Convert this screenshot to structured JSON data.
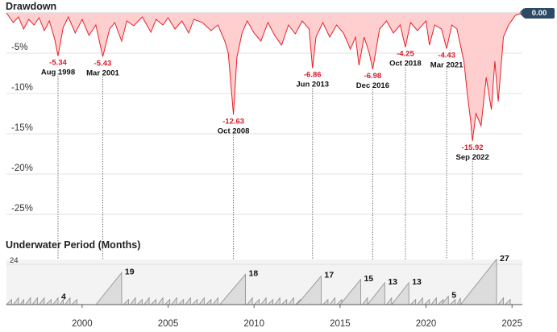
{
  "drawdown_title": "Drawdown",
  "underwater_title": "Underwater Period (Months)",
  "current_value": "0.00",
  "colors": {
    "dd_line": "#e8202a",
    "dd_fill": "#ffcfcf",
    "uw_fill": "#dcdcdc",
    "uw_line": "#8a8a8a",
    "badge": "#2c4a66"
  },
  "chart_data": [
    {
      "type": "area",
      "title": "Drawdown",
      "ylabel": "Drawdown (%)",
      "ylim": [
        -27,
        0
      ],
      "yticks": [
        -5,
        -10,
        -15,
        -20,
        -25
      ],
      "ytick_labels": [
        "-5%",
        "-10%",
        "-15%",
        "-20%",
        "-25%"
      ],
      "xlim": [
        1995.6,
        2025.6
      ],
      "xticks": [
        2000,
        2005,
        2010,
        2015,
        2020,
        2025
      ],
      "xtick_labels": [
        "2000",
        "2005",
        "2010",
        "2015",
        "2020",
        "2025"
      ],
      "current": 0.0,
      "annotations": [
        {
          "x": 1998.6,
          "value": -5.34,
          "label": "-5.34",
          "date": "Aug 1998"
        },
        {
          "x": 2001.2,
          "value": -5.43,
          "label": "-5.43",
          "date": "Mar 2001"
        },
        {
          "x": 2008.8,
          "value": -12.63,
          "label": "-12.63",
          "date": "Oct 2008"
        },
        {
          "x": 2013.4,
          "value": -6.86,
          "label": "-6.86",
          "date": "Jun 2013"
        },
        {
          "x": 2016.9,
          "value": -6.98,
          "label": "-6.98",
          "date": "Dec 2016"
        },
        {
          "x": 2018.8,
          "value": -4.25,
          "label": "-4.25",
          "date": "Oct 2018"
        },
        {
          "x": 2021.2,
          "value": -4.43,
          "label": "-4.43",
          "date": "Mar 2021"
        },
        {
          "x": 2022.7,
          "value": -15.92,
          "label": "-15.92",
          "date": "Sep 2022"
        }
      ],
      "series": [
        {
          "name": "Drawdown",
          "x": [
            1995.6,
            1996.0,
            1996.3,
            1996.6,
            1996.9,
            1997.2,
            1997.5,
            1997.8,
            1998.1,
            1998.4,
            1998.6,
            1998.9,
            1999.2,
            1999.6,
            2000.0,
            2000.4,
            2000.8,
            2001.2,
            2001.6,
            2001.9,
            2002.3,
            2002.6,
            2003.0,
            2003.5,
            2004.0,
            2004.3,
            2004.7,
            2005.0,
            2005.4,
            2005.8,
            2006.2,
            2006.5,
            2007.0,
            2007.5,
            2007.9,
            2008.3,
            2008.5,
            2008.8,
            2009.0,
            2009.3,
            2009.6,
            2010.0,
            2010.4,
            2010.8,
            2011.2,
            2011.6,
            2012.0,
            2012.4,
            2012.8,
            2013.2,
            2013.4,
            2013.6,
            2014.0,
            2014.4,
            2014.8,
            2015.2,
            2015.6,
            2015.9,
            2016.1,
            2016.4,
            2016.7,
            2016.9,
            2017.3,
            2017.7,
            2018.1,
            2018.5,
            2018.8,
            2019.1,
            2019.5,
            2020.0,
            2020.2,
            2020.5,
            2020.9,
            2021.2,
            2021.5,
            2021.8,
            2022.0,
            2022.2,
            2022.4,
            2022.6,
            2022.7,
            2022.9,
            2023.2,
            2023.5,
            2023.8,
            2024.0,
            2024.2,
            2024.5,
            2024.8,
            2025.2,
            2025.6
          ],
          "values": [
            0,
            -1.2,
            -0.5,
            -2.0,
            -0.8,
            -1.5,
            -0.6,
            -2.2,
            -1.0,
            -3.2,
            -5.34,
            -1.8,
            -0.5,
            -2.5,
            -0.8,
            -2.8,
            -1.5,
            -5.43,
            -2.0,
            -1.2,
            -3.5,
            -1.0,
            -1.6,
            -0.5,
            -2.4,
            -0.8,
            -1.5,
            -0.6,
            -2.0,
            -1.0,
            -2.5,
            -0.8,
            -1.2,
            -2.2,
            -1.5,
            -3.5,
            -5.0,
            -12.63,
            -5.5,
            -2.5,
            -1.0,
            -2.5,
            -3.5,
            -1.2,
            -2.8,
            -4.0,
            -1.5,
            -2.6,
            -1.0,
            -2.0,
            -6.86,
            -3.0,
            -1.2,
            -3.0,
            -1.5,
            -2.5,
            -4.5,
            -3.0,
            -6.5,
            -3.0,
            -5.0,
            -6.98,
            -2.0,
            -1.0,
            -2.5,
            -1.5,
            -4.25,
            -1.2,
            -2.2,
            -1.0,
            -4.0,
            -1.5,
            -2.0,
            -4.43,
            -1.5,
            -2.0,
            -4.0,
            -6.0,
            -10.0,
            -13.5,
            -15.92,
            -12.5,
            -14.0,
            -8.0,
            -12.0,
            -6.0,
            -11.0,
            -3.0,
            -1.5,
            -0.3,
            0
          ]
        }
      ]
    },
    {
      "type": "area",
      "title": "Underwater Period (Months)",
      "ylim": [
        0,
        24
      ],
      "ytick_labels": [
        "24"
      ],
      "xlim": [
        1995.6,
        2025.6
      ],
      "peaks": [
        {
          "x": 1998.6,
          "value": 4,
          "label": "4"
        },
        {
          "x": 2002.3,
          "value": 19,
          "label": "19"
        },
        {
          "x": 2009.5,
          "value": 18,
          "label": "18"
        },
        {
          "x": 2013.9,
          "value": 17,
          "label": "17"
        },
        {
          "x": 2016.2,
          "value": 15,
          "label": "15"
        },
        {
          "x": 2017.6,
          "value": 13,
          "label": "13"
        },
        {
          "x": 2019.0,
          "value": 13,
          "label": "13"
        },
        {
          "x": 2021.3,
          "value": 5,
          "label": "5"
        },
        {
          "x": 2024.1,
          "value": 27,
          "label": "27"
        }
      ],
      "segments": [
        [
          1995.6,
          1995.9,
          3
        ],
        [
          1996.0,
          1996.3,
          4
        ],
        [
          1996.4,
          1996.6,
          3
        ],
        [
          1996.7,
          1997.0,
          4
        ],
        [
          1997.1,
          1997.4,
          4
        ],
        [
          1997.5,
          1997.8,
          4
        ],
        [
          1997.9,
          1998.2,
          3
        ],
        [
          1998.3,
          1998.6,
          4
        ],
        [
          1998.7,
          1998.9,
          3
        ],
        [
          1999.0,
          1999.3,
          4
        ],
        [
          1999.4,
          1999.7,
          3
        ],
        [
          2000.8,
          2002.3,
          19
        ],
        [
          2002.4,
          2002.7,
          3
        ],
        [
          2002.8,
          2003.1,
          4
        ],
        [
          2003.2,
          2003.5,
          3
        ],
        [
          2003.6,
          2003.9,
          4
        ],
        [
          2004.0,
          2004.3,
          3
        ],
        [
          2004.4,
          2004.7,
          4
        ],
        [
          2004.8,
          2005.1,
          3
        ],
        [
          2005.2,
          2005.5,
          4
        ],
        [
          2005.6,
          2005.9,
          3
        ],
        [
          2006.0,
          2006.3,
          4
        ],
        [
          2006.4,
          2006.7,
          3
        ],
        [
          2006.8,
          2007.1,
          4
        ],
        [
          2007.2,
          2007.5,
          3
        ],
        [
          2007.6,
          2007.9,
          4
        ],
        [
          2008.0,
          2008.3,
          3
        ],
        [
          2008.4,
          2008.6,
          3
        ],
        [
          2008.0,
          2009.5,
          18
        ],
        [
          2009.6,
          2009.9,
          4
        ],
        [
          2010.0,
          2010.3,
          3
        ],
        [
          2010.4,
          2010.7,
          4
        ],
        [
          2010.8,
          2011.1,
          3
        ],
        [
          2011.2,
          2011.5,
          4
        ],
        [
          2011.6,
          2011.9,
          3
        ],
        [
          2012.0,
          2012.3,
          4
        ],
        [
          2012.4,
          2012.7,
          3
        ],
        [
          2012.5,
          2013.9,
          17
        ],
        [
          2014.0,
          2014.3,
          3
        ],
        [
          2014.4,
          2014.7,
          4
        ],
        [
          2014.8,
          2015.1,
          3
        ],
        [
          2015.0,
          2016.2,
          15
        ],
        [
          2016.3,
          2016.6,
          4
        ],
        [
          2016.6,
          2017.6,
          13
        ],
        [
          2017.7,
          2018.0,
          4
        ],
        [
          2018.0,
          2019.0,
          13
        ],
        [
          2019.1,
          2019.4,
          3
        ],
        [
          2019.5,
          2019.8,
          4
        ],
        [
          2019.9,
          2020.2,
          3
        ],
        [
          2020.3,
          2020.6,
          4
        ],
        [
          2020.7,
          2021.0,
          3
        ],
        [
          2020.9,
          2021.3,
          5
        ],
        [
          2021.4,
          2021.7,
          3
        ],
        [
          2021.8,
          2022.0,
          4
        ],
        [
          2022.0,
          2024.1,
          27
        ],
        [
          2024.2,
          2024.5,
          4
        ],
        [
          2024.6,
          2024.9,
          3
        ]
      ]
    }
  ]
}
